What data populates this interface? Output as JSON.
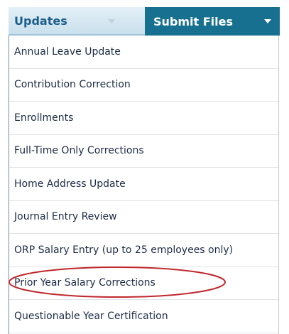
{
  "tabs": [
    "Updates",
    "Submit Files"
  ],
  "menu": {
    "items": [
      "Annual Leave Update",
      "Contribution Correction",
      "Enrollments",
      "Full-Time Only Corrections",
      "Home Address Update",
      "Journal Entry Review",
      "ORP Salary Entry (up to 25 employees only)",
      "Prior Year Salary Corrections",
      "Questionable Year Certification"
    ]
  }
}
